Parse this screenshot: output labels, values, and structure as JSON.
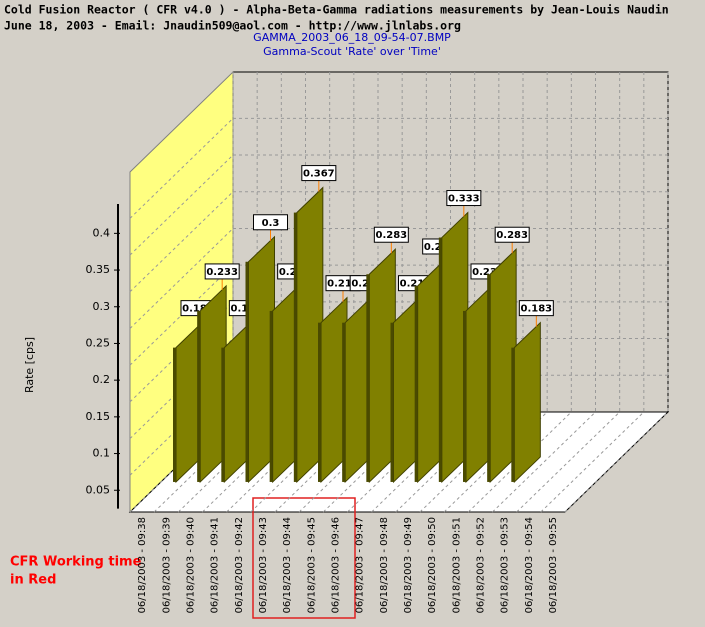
{
  "chart_data": {
    "type": "bar3d",
    "title": "Cold Fusion Reactor ( CFR v4.0 ) - Alpha-Beta-Gamma radiations measurements by Jean-Louis Naudin",
    "subtitle": "June 18, 2003 - Email: Jnaudin509@aol.com - http://www.jlnlabs.org",
    "chart_title": "GAMMA_2003_06_18_09-54-07.BMP",
    "chart_subtitle": "Gamma-Scout 'Rate' over 'Time'",
    "y_label": "Rate [cps]",
    "annotation": [
      "CFR Working time",
      "in Red"
    ],
    "categories": [
      "06/18/2003 - 09:38",
      "06/18/2003 - 09:39",
      "06/18/2003 - 09:40",
      "06/18/2003 - 09:41",
      "06/18/2003 - 09:42",
      "06/18/2003 - 09:43",
      "06/18/2003 - 09:44",
      "06/18/2003 - 09:45",
      "06/18/2003 - 09:46",
      "06/18/2003 - 09:47",
      "06/18/2003 - 09:48",
      "06/18/2003 - 09:49",
      "06/18/2003 - 09:50",
      "06/18/2003 - 09:51",
      "06/18/2003 - 09:52",
      "06/18/2003 - 09:53",
      "06/18/2003 - 09:54",
      "06/18/2003 - 09:55"
    ],
    "values": [
      0.183,
      0.233,
      0.183,
      0.3,
      0.233,
      0.367,
      0.217,
      0.217,
      0.283,
      0.217,
      0.267,
      0.333,
      0.233,
      0.283,
      0.183,
      null,
      null,
      null
    ],
    "color": "#808000",
    "ylim": [
      0.025,
      0.44
    ],
    "yticks": [
      0.05,
      0.1,
      0.15,
      0.2,
      0.25,
      0.3,
      0.35,
      0.4
    ],
    "grid": true
  }
}
